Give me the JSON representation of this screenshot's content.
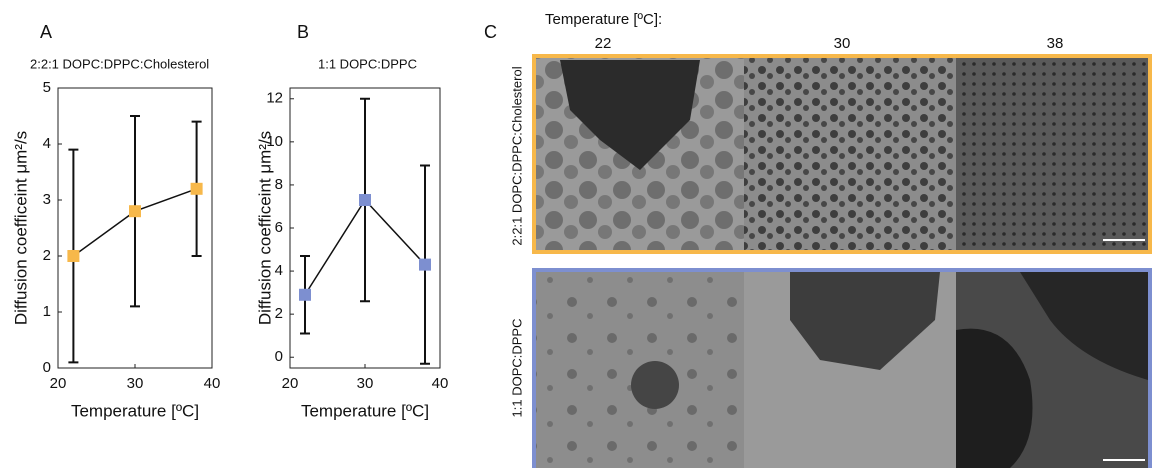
{
  "chart_data": [
    {
      "type": "line",
      "panel": "A",
      "title": "2:2:1 DOPC:DPPC:Cholesterol",
      "x_label": "Temperature [ºC]",
      "y_label": "Diffusion coefficeint μm²/s",
      "x": [
        22,
        30,
        38
      ],
      "values": [
        2.0,
        2.8,
        3.2
      ],
      "errors": [
        1.9,
        1.7,
        1.2
      ],
      "color": "#f7b84a",
      "xlim": [
        20,
        40
      ],
      "xticks": [
        20,
        30,
        40
      ],
      "ylim": [
        0,
        5
      ],
      "yticks": [
        0,
        1,
        2,
        3,
        4,
        5
      ]
    },
    {
      "type": "line",
      "panel": "B",
      "title": "1:1 DOPC:DPPC",
      "x_label": "Temperature [ºC]",
      "y_label": "Diffusion coefficeint μm²/s",
      "x": [
        22,
        30,
        38
      ],
      "values": [
        2.9,
        7.3,
        4.3
      ],
      "errors": [
        1.8,
        4.7,
        4.6
      ],
      "color": "#7d8fd0",
      "xlim": [
        20,
        40
      ],
      "xticks": [
        20,
        30,
        40
      ],
      "ylim": [
        -0.5,
        12.5
      ],
      "yticks": [
        0,
        2,
        4,
        6,
        8,
        10,
        12
      ]
    }
  ],
  "image_panel": {
    "panel": "C",
    "column_title": "Temperature [ºC]:",
    "columns": [
      "22",
      "30",
      "38"
    ],
    "rows": [
      "2:2:1 DOPC:DPPC:Cholesterol",
      "1:1 DOPC:DPPC"
    ]
  }
}
